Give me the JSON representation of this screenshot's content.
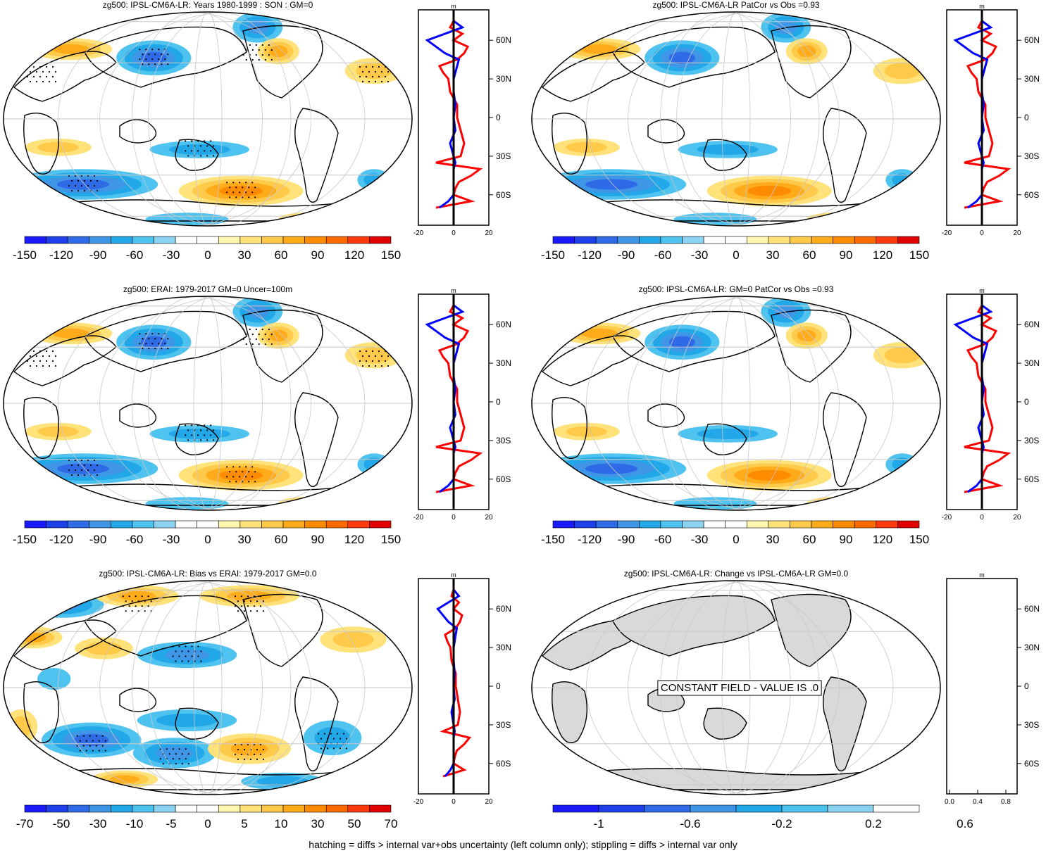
{
  "footnote": "hatching = diffs > internal var+obs uncertainty (left column only); stippling = diffs > internal var only",
  "colors": {
    "cold": [
      "#1a1aff",
      "#1f3fe8",
      "#2f6be6",
      "#3f95e6",
      "#22a8e8",
      "#4fc3f0",
      "#8cd3f2",
      "#ffffff",
      "#fff7b0",
      "#ffe27a",
      "#ffc94a",
      "#ffab1a",
      "#ff8c00",
      "#ff6a00",
      "#ff3a0f",
      "#e10000"
    ],
    "zonal_model": "#ff0000",
    "zonal_obs": "#0000ff",
    "zero_line": "#000000",
    "land_fill": "#d9d9d9",
    "grid": "#c8c8c8"
  },
  "panels": [
    {
      "title": "zg500: IPSL-CM6A-LR: Years 1980-1999 : SON : GM=0",
      "colorbar_labels": [
        "-150",
        "-120",
        "-90",
        "-60",
        "-30",
        "0",
        "30",
        "60",
        "90",
        "120",
        "150"
      ],
      "zonal_top_label": "m",
      "zonal_xticks": [
        "-20",
        "0",
        "20"
      ],
      "zonal_lat_labels": [
        "60N",
        "30N",
        "0",
        "30S",
        "60S"
      ],
      "kind": "field",
      "stippled": true
    },
    {
      "title": "zg500: IPSL-CM6A-LR PatCor vs Obs =0.93",
      "colorbar_labels": [
        "-150",
        "-120",
        "-90",
        "-60",
        "-30",
        "0",
        "30",
        "60",
        "90",
        "120",
        "150"
      ],
      "zonal_top_label": "m",
      "zonal_xticks": [
        "-20",
        "0",
        "20"
      ],
      "zonal_lat_labels": [
        "60N",
        "30N",
        "0",
        "30S",
        "60S"
      ],
      "kind": "field",
      "stippled": false
    },
    {
      "title": "zg500: ERAI: 1979-2017 GM=0 Uncer=100m",
      "colorbar_labels": [
        "-150",
        "-120",
        "-90",
        "-60",
        "-30",
        "0",
        "30",
        "60",
        "90",
        "120",
        "150"
      ],
      "zonal_top_label": "m",
      "zonal_xticks": [
        "-20",
        "0",
        "20"
      ],
      "zonal_lat_labels": [
        "60N",
        "30N",
        "0",
        "30S",
        "60S"
      ],
      "kind": "field",
      "stippled": true
    },
    {
      "title": "zg500: IPSL-CM6A-LR: GM=0 PatCor vs Obs =0.93",
      "colorbar_labels": [
        "-150",
        "-120",
        "-90",
        "-60",
        "-30",
        "0",
        "30",
        "60",
        "90",
        "120",
        "150"
      ],
      "zonal_top_label": "m",
      "zonal_xticks": [
        "-20",
        "0",
        "20"
      ],
      "zonal_lat_labels": [
        "60N",
        "30N",
        "0",
        "30S",
        "60S"
      ],
      "kind": "field",
      "stippled": false
    },
    {
      "title": "zg500: IPSL-CM6A-LR: Bias vs ERAI: 1979-2017  GM=0.0",
      "colorbar_labels": [
        "-70",
        "-50",
        "-30",
        "-10",
        "-5",
        "0",
        "5",
        "10",
        "30",
        "50",
        "70"
      ],
      "zonal_top_label": "m",
      "zonal_xticks": [
        "-20",
        "0",
        "20"
      ],
      "zonal_lat_labels": [
        "60N",
        "30N",
        "0",
        "30S",
        "60S"
      ],
      "kind": "bias",
      "stippled": true
    },
    {
      "title": "zg500: IPSL-CM6A-LR: Change vs IPSL-CM6A-LR GM=0.0",
      "colorbar_labels": [
        "-1",
        "-0.6",
        "-0.2",
        "0.2",
        "0.6"
      ],
      "zonal_top_label": "m",
      "zonal_xticks": [
        "0.0",
        "0.4",
        "0.8"
      ],
      "zonal_lat_labels": [
        "60N",
        "30N",
        "0",
        "30S",
        "60S"
      ],
      "kind": "constant",
      "stippled": false,
      "constant_text": "CONSTANT FIELD - VALUE IS .0"
    }
  ],
  "chart_data": [
    {
      "type": "heatmap",
      "title": "zg500: IPSL-CM6A-LR: Years 1980-1999 : SON : GM=0",
      "units": "m",
      "levels": [
        -150,
        -135,
        -120,
        -105,
        -90,
        -75,
        -60,
        -45,
        -30,
        -15,
        0,
        15,
        30,
        45,
        60,
        75,
        90,
        105,
        120,
        135,
        150
      ],
      "zonal_mean": {
        "lat": [
          75,
          70,
          65,
          60,
          55,
          50,
          45,
          40,
          35,
          30,
          20,
          10,
          0,
          -10,
          -20,
          -30,
          -35,
          -40,
          -45,
          -50,
          -55,
          -60,
          -65,
          -70
        ],
        "model": [
          0,
          -2,
          5,
          0,
          8,
          6,
          2,
          -8,
          -6,
          -3,
          -2,
          2,
          2,
          4,
          6,
          4,
          -10,
          15,
          10,
          3,
          1,
          0,
          10,
          -10
        ],
        "obs": [
          0,
          5,
          -5,
          -15,
          -10,
          -5,
          3,
          2,
          1,
          0,
          0,
          1,
          0,
          1,
          -2,
          0,
          1,
          0,
          0,
          0,
          0,
          0,
          -3,
          -8
        ]
      }
    },
    {
      "type": "heatmap",
      "title": "zg500: IPSL-CM6A-LR PatCor vs Obs =0.93",
      "units": "m",
      "xlim": [
        -20,
        20
      ]
    },
    {
      "type": "heatmap",
      "title": "zg500: ERAI: 1979-2017 GM=0 Uncer=100m",
      "units": "m",
      "xlim": [
        -20,
        20
      ]
    },
    {
      "type": "heatmap",
      "title": "zg500: IPSL-CM6A-LR: GM=0 PatCor vs Obs =0.93",
      "units": "m",
      "xlim": [
        -20,
        20
      ]
    },
    {
      "type": "heatmap",
      "title": "zg500: IPSL-CM6A-LR: Bias vs ERAI: 1979-2017  GM=0.0",
      "units": "m",
      "levels": [
        -70,
        -50,
        -30,
        -10,
        -5,
        0,
        5,
        10,
        30,
        50,
        70
      ],
      "xlim": [
        -20,
        20
      ]
    },
    {
      "type": "heatmap",
      "title": "zg500: IPSL-CM6A-LR: Change vs IPSL-CM6A-LR GM=0.0",
      "units": "m",
      "levels": [
        -1,
        -0.6,
        -0.2,
        0.2,
        0.6
      ],
      "xlim": [
        0,
        1
      ]
    }
  ]
}
